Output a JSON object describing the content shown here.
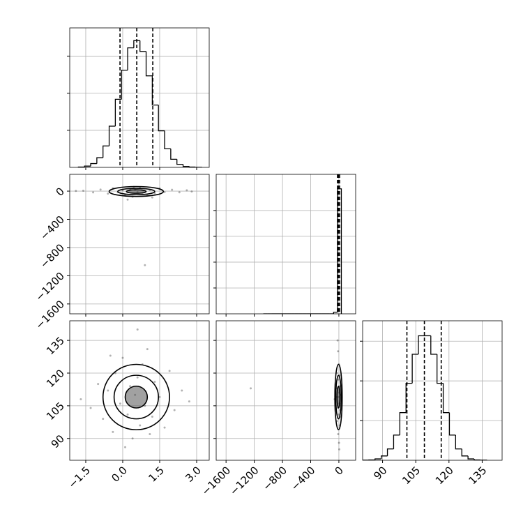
{
  "chart_data": [
    {
      "type": "histogram",
      "grid": true,
      "color": "#000000",
      "labeled_axes": [],
      "bins": [
        -1.8,
        -1.55,
        -1.3,
        -1.05,
        -0.8,
        -0.55,
        -0.3,
        -0.05,
        0.2,
        0.45,
        0.7,
        0.95,
        1.2,
        1.45,
        1.7,
        1.95,
        2.2,
        2.45,
        2.7,
        2.95,
        3.2
      ],
      "counts": [
        5,
        17,
        51,
        130,
        289,
        555,
        918,
        1310,
        1611,
        1709,
        1563,
        1234,
        840,
        493,
        250,
        109,
        41,
        13,
        4,
        1
      ],
      "quantiles": [
        -0.11,
        0.57,
        1.22
      ],
      "xlim": [
        -2.15,
        3.51
      ],
      "xticks": [
        -1.5,
        0,
        1.5,
        3
      ],
      "ylim": [
        0,
        1880
      ],
      "yticks": [
        500,
        1000,
        1500
      ]
    },
    {
      "type": "scatter",
      "grid": true,
      "color": "#000000",
      "labeled_axes": [
        "y"
      ],
      "x": [
        -1.6,
        -1.2,
        -0.9,
        -0.6,
        -0.4,
        -0.2,
        0,
        0.1,
        0.3,
        0.4,
        0.5,
        0.6,
        0.7,
        0.8,
        1.0,
        1.1,
        1.3,
        1.5,
        1.7,
        2.0,
        2.3,
        2.6,
        0.9,
        0.2,
        1.2,
        -1.9,
        2.8,
        0.45
      ],
      "y": [
        5,
        -18,
        22,
        -35,
        40,
        -16,
        13,
        -55,
        30,
        -80,
        18,
        -13,
        45,
        -32,
        -60,
        16,
        -30,
        38,
        -14,
        19,
        -17,
        12,
        -1050,
        -120,
        -90,
        3,
        -6,
        60
      ],
      "contours": [
        {
          "cx": 0.55,
          "cy": -5,
          "rx": 0.4,
          "ry": 25
        },
        {
          "cx": 0.55,
          "cy": -5,
          "rx": 0.75,
          "ry": 45
        },
        {
          "cx": 0.55,
          "cy": -5,
          "rx": 1.1,
          "ry": 70
        }
      ],
      "xlim": [
        -2.15,
        3.51
      ],
      "xticks": [
        -1.5,
        0,
        1.5,
        3
      ],
      "ylim": [
        -1740,
        238
      ],
      "yticks": [
        {
          "value": 0,
          "label": "0"
        },
        {
          "value": -400,
          "label": "−400"
        },
        {
          "value": -800,
          "label": "−800"
        },
        {
          "value": -1200,
          "label": "−1200"
        },
        {
          "value": -1600,
          "label": "−1600"
        }
      ]
    },
    {
      "type": "histogram",
      "grid": true,
      "color": "#000000",
      "labeled_axes": [],
      "bins": [
        -1065,
        -1010,
        -955,
        -900,
        -845,
        -790,
        -735,
        -680,
        -625,
        -570,
        -515,
        -460,
        -405,
        -350,
        -295,
        -240,
        -185,
        -130,
        -75,
        -20,
        35
      ],
      "counts": [
        1,
        0,
        0,
        0,
        0,
        0,
        0,
        0,
        0,
        0,
        0,
        0,
        0,
        0,
        0,
        0,
        0,
        0,
        120,
        9680
      ],
      "quantiles": [
        -20,
        -5,
        10
      ],
      "xlim": [
        -1740,
        238
      ],
      "xticks": [
        -1600,
        -1200,
        -800,
        -400,
        0
      ],
      "ylim": [
        0,
        10800
      ],
      "yticks": [
        2000,
        4000,
        6000,
        8000
      ]
    },
    {
      "type": "scatter",
      "grid": true,
      "color": "#000000",
      "labeled_axes": [
        "x",
        "y"
      ],
      "x": [
        -1.7,
        -1.3,
        -1.0,
        -0.8,
        -0.6,
        -0.4,
        -0.3,
        -0.1,
        0.0,
        0.2,
        0.3,
        0.4,
        0.5,
        0.6,
        0.7,
        0.8,
        0.9,
        1.0,
        1.2,
        1.3,
        1.5,
        1.7,
        1.9,
        2.1,
        2.4,
        2.7,
        -0.5,
        0.1,
        1.1,
        0.6
      ],
      "y": [
        108,
        104,
        115,
        99,
        112,
        93,
        120,
        106,
        127,
        101,
        114,
        90,
        110,
        118,
        96,
        124,
        105,
        131,
        100,
        116,
        109,
        95,
        121,
        103,
        112,
        107,
        128,
        86,
        92,
        140
      ],
      "contours": [
        {
          "cx": 0.55,
          "cy": 109,
          "rx": 0.45,
          "ry": 5
        },
        {
          "cx": 0.55,
          "cy": 109,
          "rx": 0.9,
          "ry": 10
        },
        {
          "cx": 0.55,
          "cy": 109,
          "rx": 1.35,
          "ry": 15
        }
      ],
      "xlim": [
        -2.15,
        3.51
      ],
      "xticks": [
        {
          "value": -1.5,
          "label": "−1.5"
        },
        {
          "value": 0,
          "label": "0.0"
        },
        {
          "value": 1.5,
          "label": "1.5"
        },
        {
          "value": 3,
          "label": "3.0"
        }
      ],
      "ylim": [
        80,
        144
      ],
      "yticks": [
        90,
        105,
        120,
        135
      ]
    },
    {
      "type": "scatter",
      "grid": true,
      "color": "#000000",
      "labeled_axes": [
        "x"
      ],
      "x": [
        -40,
        -30,
        -25,
        -20,
        -15,
        -12,
        -10,
        -8,
        -5,
        -3,
        0,
        2,
        5,
        8,
        10,
        12,
        15,
        20,
        25,
        -1250,
        -60,
        30,
        -18,
        6
      ],
      "y": [
        109,
        120,
        98,
        113,
        104,
        130,
        92,
        117,
        109,
        101,
        124,
        88,
        111,
        106,
        119,
        96,
        114,
        103,
        110,
        113,
        108,
        100,
        135,
        85
      ],
      "contours": [
        {
          "cx": -5,
          "cy": 109,
          "rx": 20,
          "ry": 5
        },
        {
          "cx": -5,
          "cy": 109,
          "rx": 38,
          "ry": 10
        },
        {
          "cx": -5,
          "cy": 109,
          "rx": 52,
          "ry": 15
        }
      ],
      "xlim": [
        -1740,
        238
      ],
      "xticks": [
        {
          "value": -1600,
          "label": "−1600"
        },
        {
          "value": -1200,
          "label": "−1200"
        },
        {
          "value": -800,
          "label": "−800"
        },
        {
          "value": -400,
          "label": "−400"
        },
        0
      ],
      "ylim": [
        80,
        144
      ],
      "yticks": [
        90,
        105,
        120,
        135
      ]
    },
    {
      "type": "histogram",
      "grid": true,
      "color": "#000000",
      "labeled_axes": [
        "x"
      ],
      "bins": [
        81,
        83.8,
        86.6,
        89.4,
        92.2,
        95,
        97.8,
        100.6,
        103.4,
        106.2,
        109,
        111.8,
        114.6,
        117.4,
        120.2,
        123,
        125.8,
        128.6,
        131.4,
        134.2,
        137
      ],
      "counts": [
        1,
        3,
        12,
        38,
        100,
        222,
        420,
        679,
        935,
        1098,
        1098,
        935,
        679,
        420,
        222,
        100,
        38,
        12,
        3,
        1
      ],
      "quantiles": [
        101,
        108.9,
        116.5
      ],
      "xlim": [
        81,
        144
      ],
      "xticks": [
        90,
        105,
        120,
        135
      ],
      "ylim": [
        0,
        1230
      ],
      "yticks": [
        350,
        700,
        1050
      ]
    }
  ]
}
